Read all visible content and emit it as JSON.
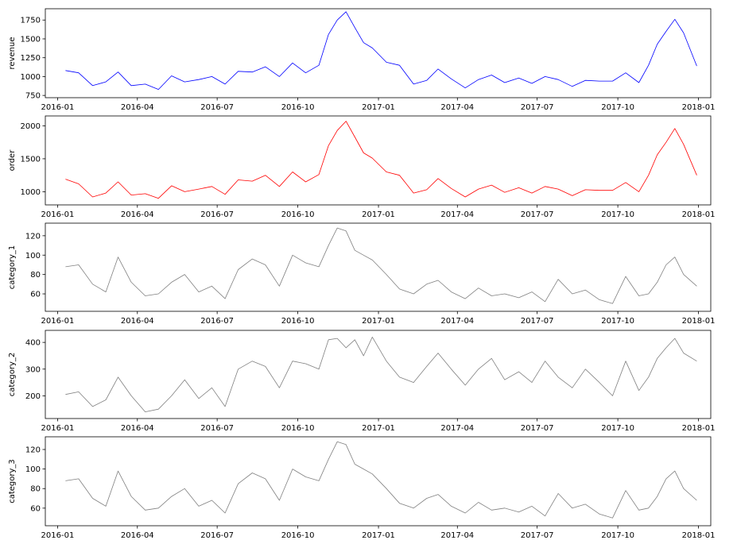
{
  "chart_data": [
    {
      "type": "line",
      "ylabel": "revenue",
      "color": "#0000ff",
      "ylim": [
        720,
        1900
      ],
      "yticks": [
        750,
        1000,
        1250,
        1500,
        1750
      ],
      "ytick_labels": [
        "750",
        "1000",
        "1250",
        "1500",
        "1750"
      ],
      "x_dates": [
        "2016-01-10",
        "2016-01-25",
        "2016-02-10",
        "2016-02-25",
        "2016-03-10",
        "2016-03-25",
        "2016-04-10",
        "2016-04-25",
        "2016-05-10",
        "2016-05-25",
        "2016-06-10",
        "2016-06-25",
        "2016-07-10",
        "2016-07-25",
        "2016-08-10",
        "2016-08-25",
        "2016-09-10",
        "2016-09-25",
        "2016-10-10",
        "2016-10-25",
        "2016-11-05",
        "2016-11-15",
        "2016-11-25",
        "2016-12-05",
        "2016-12-15",
        "2016-12-25",
        "2017-01-10",
        "2017-01-25",
        "2017-02-10",
        "2017-02-25",
        "2017-03-10",
        "2017-03-25",
        "2017-04-10",
        "2017-04-25",
        "2017-05-10",
        "2017-05-25",
        "2017-06-10",
        "2017-06-25",
        "2017-07-10",
        "2017-07-25",
        "2017-08-10",
        "2017-08-25",
        "2017-09-10",
        "2017-09-25",
        "2017-10-10",
        "2017-10-25",
        "2017-11-05",
        "2017-11-15",
        "2017-11-25",
        "2017-12-05",
        "2017-12-15",
        "2017-12-30"
      ],
      "values": [
        1080,
        1050,
        880,
        930,
        1060,
        880,
        900,
        830,
        1010,
        930,
        960,
        1000,
        900,
        1070,
        1060,
        1130,
        1000,
        1180,
        1050,
        1150,
        1560,
        1750,
        1860,
        1650,
        1450,
        1380,
        1190,
        1150,
        900,
        950,
        1100,
        970,
        850,
        960,
        1020,
        920,
        980,
        910,
        1000,
        960,
        870,
        950,
        940,
        940,
        1050,
        920,
        1150,
        1430,
        1600,
        1760,
        1580,
        1140
      ]
    },
    {
      "type": "line",
      "ylabel": "order",
      "color": "#ff0000",
      "ylim": [
        800,
        2150
      ],
      "yticks": [
        1000,
        1500,
        2000
      ],
      "ytick_labels": [
        "1000",
        "1500",
        "2000"
      ],
      "x_dates": [
        "2016-01-10",
        "2016-01-25",
        "2016-02-10",
        "2016-02-25",
        "2016-03-10",
        "2016-03-25",
        "2016-04-10",
        "2016-04-25",
        "2016-05-10",
        "2016-05-25",
        "2016-06-10",
        "2016-06-25",
        "2016-07-10",
        "2016-07-25",
        "2016-08-10",
        "2016-08-25",
        "2016-09-10",
        "2016-09-25",
        "2016-10-10",
        "2016-10-25",
        "2016-11-05",
        "2016-11-15",
        "2016-11-25",
        "2016-12-05",
        "2016-12-15",
        "2016-12-25",
        "2017-01-10",
        "2017-01-25",
        "2017-02-10",
        "2017-02-25",
        "2017-03-10",
        "2017-03-25",
        "2017-04-10",
        "2017-04-25",
        "2017-05-10",
        "2017-05-25",
        "2017-06-10",
        "2017-06-25",
        "2017-07-10",
        "2017-07-25",
        "2017-08-10",
        "2017-08-25",
        "2017-09-10",
        "2017-09-25",
        "2017-10-10",
        "2017-10-25",
        "2017-11-05",
        "2017-11-15",
        "2017-11-25",
        "2017-12-05",
        "2017-12-15",
        "2017-12-30"
      ],
      "values": [
        1190,
        1120,
        920,
        980,
        1150,
        950,
        970,
        900,
        1090,
        1000,
        1040,
        1080,
        960,
        1180,
        1160,
        1250,
        1080,
        1300,
        1150,
        1260,
        1700,
        1930,
        2070,
        1830,
        1590,
        1510,
        1300,
        1250,
        980,
        1030,
        1200,
        1050,
        920,
        1040,
        1100,
        990,
        1060,
        980,
        1080,
        1040,
        940,
        1030,
        1020,
        1020,
        1140,
        1000,
        1250,
        1560,
        1750,
        1960,
        1720,
        1250
      ]
    },
    {
      "type": "line",
      "ylabel": "category_1",
      "color": "#808080",
      "ylim": [
        42,
        133
      ],
      "yticks": [
        60,
        80,
        100,
        120
      ],
      "ytick_labels": [
        "60",
        "80",
        "100",
        "120"
      ],
      "x_dates": [
        "2016-01-10",
        "2016-01-25",
        "2016-02-10",
        "2016-02-25",
        "2016-03-10",
        "2016-03-25",
        "2016-04-10",
        "2016-04-25",
        "2016-05-10",
        "2016-05-25",
        "2016-06-10",
        "2016-06-25",
        "2016-07-10",
        "2016-07-25",
        "2016-08-10",
        "2016-08-25",
        "2016-09-10",
        "2016-09-25",
        "2016-10-10",
        "2016-10-25",
        "2016-11-05",
        "2016-11-15",
        "2016-11-25",
        "2016-12-05",
        "2016-12-15",
        "2016-12-25",
        "2017-01-10",
        "2017-01-25",
        "2017-02-10",
        "2017-02-25",
        "2017-03-10",
        "2017-03-25",
        "2017-04-10",
        "2017-04-25",
        "2017-05-10",
        "2017-05-25",
        "2017-06-10",
        "2017-06-25",
        "2017-07-10",
        "2017-07-25",
        "2017-08-10",
        "2017-08-25",
        "2017-09-10",
        "2017-09-25",
        "2017-10-10",
        "2017-10-25",
        "2017-11-05",
        "2017-11-15",
        "2017-11-25",
        "2017-12-05",
        "2017-12-15",
        "2017-12-30"
      ],
      "values": [
        88,
        90,
        70,
        62,
        98,
        72,
        58,
        60,
        72,
        80,
        62,
        68,
        55,
        85,
        96,
        90,
        68,
        100,
        92,
        88,
        110,
        128,
        125,
        105,
        100,
        95,
        80,
        65,
        60,
        70,
        74,
        62,
        55,
        66,
        58,
        60,
        56,
        62,
        52,
        75,
        60,
        64,
        54,
        50,
        78,
        58,
        60,
        72,
        90,
        98,
        80,
        68
      ]
    },
    {
      "type": "line",
      "ylabel": "category_2",
      "color": "#808080",
      "ylim": [
        115,
        445
      ],
      "yticks": [
        200,
        300,
        400
      ],
      "ytick_labels": [
        "200",
        "300",
        "400"
      ],
      "x_dates": [
        "2016-01-10",
        "2016-01-25",
        "2016-02-10",
        "2016-02-25",
        "2016-03-10",
        "2016-03-25",
        "2016-04-10",
        "2016-04-25",
        "2016-05-10",
        "2016-05-25",
        "2016-06-10",
        "2016-06-25",
        "2016-07-10",
        "2016-07-25",
        "2016-08-10",
        "2016-08-25",
        "2016-09-10",
        "2016-09-25",
        "2016-10-10",
        "2016-10-25",
        "2016-11-05",
        "2016-11-15",
        "2016-11-25",
        "2016-12-05",
        "2016-12-15",
        "2016-12-25",
        "2017-01-10",
        "2017-01-25",
        "2017-02-10",
        "2017-02-25",
        "2017-03-10",
        "2017-03-25",
        "2017-04-10",
        "2017-04-25",
        "2017-05-10",
        "2017-05-25",
        "2017-06-10",
        "2017-06-25",
        "2017-07-10",
        "2017-07-25",
        "2017-08-10",
        "2017-08-25",
        "2017-09-10",
        "2017-09-25",
        "2017-10-10",
        "2017-10-25",
        "2017-11-05",
        "2017-11-15",
        "2017-11-25",
        "2017-12-05",
        "2017-12-15",
        "2017-12-30"
      ],
      "values": [
        205,
        215,
        160,
        185,
        270,
        200,
        140,
        150,
        200,
        260,
        190,
        230,
        160,
        300,
        330,
        310,
        230,
        330,
        320,
        300,
        410,
        415,
        380,
        410,
        350,
        420,
        330,
        270,
        250,
        310,
        360,
        300,
        240,
        300,
        340,
        260,
        290,
        250,
        330,
        270,
        230,
        300,
        250,
        200,
        330,
        220,
        270,
        340,
        380,
        415,
        360,
        330
      ]
    },
    {
      "type": "line",
      "ylabel": "category_3",
      "color": "#808080",
      "ylim": [
        42,
        133
      ],
      "yticks": [
        60,
        80,
        100,
        120
      ],
      "ytick_labels": [
        "60",
        "80",
        "100",
        "120"
      ],
      "x_dates": [
        "2016-01-10",
        "2016-01-25",
        "2016-02-10",
        "2016-02-25",
        "2016-03-10",
        "2016-03-25",
        "2016-04-10",
        "2016-04-25",
        "2016-05-10",
        "2016-05-25",
        "2016-06-10",
        "2016-06-25",
        "2016-07-10",
        "2016-07-25",
        "2016-08-10",
        "2016-08-25",
        "2016-09-10",
        "2016-09-25",
        "2016-10-10",
        "2016-10-25",
        "2016-11-05",
        "2016-11-15",
        "2016-11-25",
        "2016-12-05",
        "2016-12-15",
        "2016-12-25",
        "2017-01-10",
        "2017-01-25",
        "2017-02-10",
        "2017-02-25",
        "2017-03-10",
        "2017-03-25",
        "2017-04-10",
        "2017-04-25",
        "2017-05-10",
        "2017-05-25",
        "2017-06-10",
        "2017-06-25",
        "2017-07-10",
        "2017-07-25",
        "2017-08-10",
        "2017-08-25",
        "2017-09-10",
        "2017-09-25",
        "2017-10-10",
        "2017-10-25",
        "2017-11-05",
        "2017-11-15",
        "2017-11-25",
        "2017-12-05",
        "2017-12-15",
        "2017-12-30"
      ],
      "values": [
        88,
        90,
        70,
        62,
        98,
        72,
        58,
        60,
        72,
        80,
        62,
        68,
        55,
        85,
        96,
        90,
        68,
        100,
        92,
        88,
        110,
        128,
        125,
        105,
        100,
        95,
        80,
        65,
        60,
        70,
        74,
        62,
        55,
        66,
        58,
        60,
        56,
        62,
        52,
        75,
        60,
        64,
        54,
        50,
        78,
        58,
        60,
        72,
        90,
        98,
        80,
        68
      ]
    }
  ],
  "x_axis": {
    "xlim": [
      "2015-12-18",
      "2018-01-15"
    ],
    "ticks": [
      "2016-01-01",
      "2016-04-01",
      "2016-07-01",
      "2016-10-01",
      "2017-01-01",
      "2017-04-01",
      "2017-07-01",
      "2017-10-01",
      "2018-01-01"
    ],
    "tick_labels": [
      "2016-01",
      "2016-04",
      "2016-07",
      "2016-10",
      "2017-01",
      "2017-04",
      "2017-07",
      "2017-10",
      "2018-01"
    ]
  },
  "grid": false
}
